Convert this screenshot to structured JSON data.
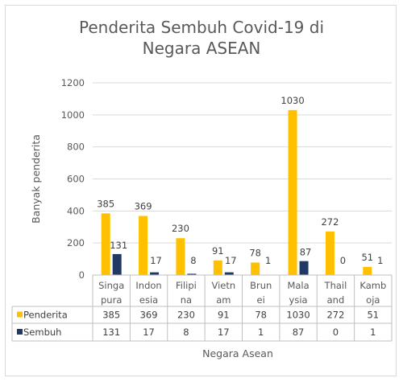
{
  "chart_data": {
    "type": "bar",
    "title_lines": [
      "Penderita Sembuh Covid-19 di",
      "Negara ASEAN"
    ],
    "ylabel": "Banyak penderita",
    "xlabel": "Negara Asean",
    "ylim": [
      0,
      1200
    ],
    "yticks": [
      "0",
      "200",
      "400",
      "600",
      "800",
      "1000",
      "1200"
    ],
    "categories": [
      [
        "Singa",
        "pura"
      ],
      [
        "Indon",
        "esia"
      ],
      [
        "Filipi",
        "na"
      ],
      [
        "Vietn",
        "am"
      ],
      [
        "Brun",
        "ei"
      ],
      [
        "Mala",
        "ysia"
      ],
      [
        "Thail",
        "and"
      ],
      [
        "Kamb",
        "oja"
      ]
    ],
    "series": [
      {
        "name": "Penderita",
        "color": "#FFC000",
        "values": [
          385,
          369,
          230,
          91,
          78,
          1030,
          272,
          51
        ]
      },
      {
        "name": "Sembuh",
        "color": "#1F3864",
        "values": [
          131,
          17,
          8,
          17,
          1,
          87,
          0,
          1
        ]
      }
    ],
    "grid": true,
    "legend": "data-table"
  }
}
